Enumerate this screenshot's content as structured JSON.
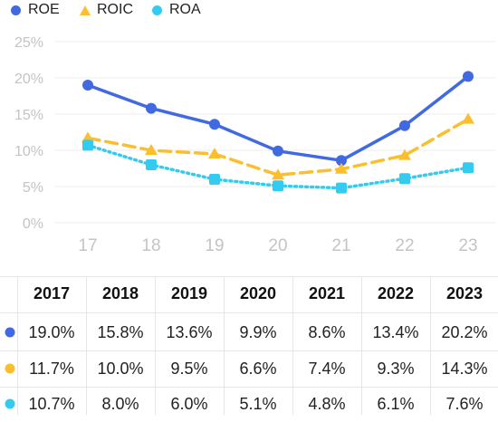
{
  "legend": {
    "items": [
      {
        "name": "ROE",
        "color": "#4169e1",
        "marker": "circle"
      },
      {
        "name": "ROIC",
        "color": "#fbbf2e",
        "marker": "triangle"
      },
      {
        "name": "ROA",
        "color": "#33ccf0",
        "marker": "square"
      }
    ]
  },
  "chart_data": {
    "type": "line",
    "title": "",
    "xlabel": "",
    "ylabel": "",
    "categories": [
      "17",
      "18",
      "19",
      "20",
      "21",
      "22",
      "23"
    ],
    "ylim": [
      0,
      25
    ],
    "yticks": [
      "0%",
      "5%",
      "10%",
      "15%",
      "20%",
      "25%"
    ],
    "grid": true,
    "legend_position": "top-left",
    "series": [
      {
        "name": "ROE",
        "color": "#4169e1",
        "style": "solid",
        "marker": "circle",
        "values": [
          19.0,
          15.8,
          13.6,
          9.9,
          8.6,
          13.4,
          20.2
        ]
      },
      {
        "name": "ROIC",
        "color": "#fbbf2e",
        "style": "dashed",
        "marker": "triangle",
        "values": [
          11.7,
          10.0,
          9.5,
          6.6,
          7.4,
          9.3,
          14.3
        ]
      },
      {
        "name": "ROA",
        "color": "#33ccf0",
        "style": "dotted",
        "marker": "square",
        "values": [
          10.7,
          8.0,
          6.0,
          5.1,
          4.8,
          6.1,
          7.6
        ]
      }
    ]
  },
  "table": {
    "headers": [
      "2017",
      "2018",
      "2019",
      "2020",
      "2021",
      "2022",
      "2023"
    ],
    "rows": [
      {
        "series": "ROE",
        "color": "#4169e1",
        "cells": [
          "19.0%",
          "15.8%",
          "13.6%",
          "9.9%",
          "8.6%",
          "13.4%",
          "20.2%"
        ]
      },
      {
        "series": "ROIC",
        "color": "#fbbf2e",
        "cells": [
          "11.7%",
          "10.0%",
          "9.5%",
          "6.6%",
          "7.4%",
          "9.3%",
          "14.3%"
        ]
      },
      {
        "series": "ROA",
        "color": "#33ccf0",
        "cells": [
          "10.7%",
          "8.0%",
          "6.0%",
          "5.1%",
          "4.8%",
          "6.1%",
          "7.6%"
        ]
      }
    ]
  }
}
